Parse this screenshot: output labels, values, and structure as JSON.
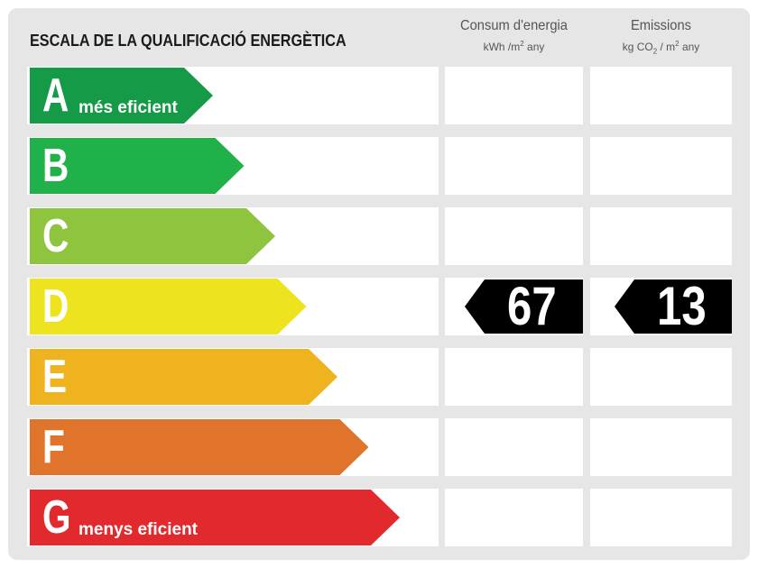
{
  "header": {
    "title": "ESCALA DE LA QUALIFICACIÓ ENERGÈTICA",
    "consum": {
      "title": "Consum d'energia",
      "unit_pre": "kWh /m",
      "unit_sup": "2",
      "unit_post": " any"
    },
    "emissions": {
      "title": "Emissions",
      "unit_pre": "kg CO",
      "unit_sub": "2",
      "unit_mid": " / m",
      "unit_sup": "2",
      "unit_post": " any"
    }
  },
  "ratings": [
    {
      "letter": "A",
      "note": "més eficient",
      "color": "#159a48"
    },
    {
      "letter": "B",
      "note": "",
      "color": "#21b14b"
    },
    {
      "letter": "C",
      "note": "",
      "color": "#8fc43f"
    },
    {
      "letter": "D",
      "note": "",
      "color": "#ede41f"
    },
    {
      "letter": "E",
      "note": "",
      "color": "#efb320"
    },
    {
      "letter": "F",
      "note": "",
      "color": "#e1742b"
    },
    {
      "letter": "G",
      "note": "menys eficient",
      "color": "#e22a2e"
    }
  ],
  "current": {
    "rating": "D",
    "consum_value": "67",
    "emissions_value": "13"
  }
}
